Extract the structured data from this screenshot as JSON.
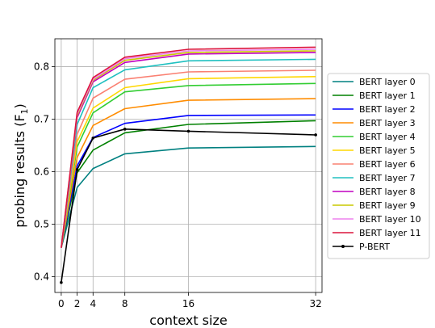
{
  "chart_data": {
    "type": "line",
    "xlabel": "context size",
    "ylabel": "probing results (F",
    "ylabel_sub": "1",
    "ylabel_close": ")",
    "x": [
      0,
      2,
      4,
      8,
      16,
      32
    ],
    "xticks": [
      "0",
      "2",
      "4",
      "8",
      "16",
      "32"
    ],
    "yticks": [
      "0.4",
      "0.5",
      "0.6",
      "0.7",
      "0.8"
    ],
    "xlim": [
      -0.8,
      32.8
    ],
    "ylim": [
      0.37,
      0.853
    ],
    "grid": true,
    "legend_position": "right",
    "series": [
      {
        "name": "BERT layer 0",
        "color": "#008080",
        "values": [
          0.455,
          0.57,
          0.606,
          0.634,
          0.645,
          0.648
        ]
      },
      {
        "name": "BERT layer 1",
        "color": "#008000",
        "values": [
          0.455,
          0.598,
          0.641,
          0.674,
          0.69,
          0.697
        ]
      },
      {
        "name": "BERT layer 2",
        "color": "#0000ff",
        "values": [
          0.455,
          0.611,
          0.665,
          0.692,
          0.707,
          0.708
        ]
      },
      {
        "name": "BERT layer 3",
        "color": "#ff8c00",
        "values": [
          0.455,
          0.627,
          0.688,
          0.72,
          0.736,
          0.739
        ]
      },
      {
        "name": "BERT layer 4",
        "color": "#32cd32",
        "values": [
          0.455,
          0.647,
          0.712,
          0.752,
          0.764,
          0.768
        ]
      },
      {
        "name": "BERT layer 5",
        "color": "#ffd700",
        "values": [
          0.455,
          0.657,
          0.721,
          0.76,
          0.777,
          0.781
        ]
      },
      {
        "name": "BERT layer 6",
        "color": "#fa8072",
        "values": [
          0.455,
          0.671,
          0.74,
          0.776,
          0.79,
          0.793
        ]
      },
      {
        "name": "BERT layer 7",
        "color": "#20c0c0",
        "values": [
          0.455,
          0.69,
          0.76,
          0.794,
          0.811,
          0.814
        ]
      },
      {
        "name": "BERT layer 8",
        "color": "#c000c0",
        "values": [
          0.455,
          0.703,
          0.771,
          0.808,
          0.824,
          0.827
        ]
      },
      {
        "name": "BERT layer 9",
        "color": "#c8c800",
        "values": [
          0.455,
          0.707,
          0.774,
          0.812,
          0.827,
          0.83
        ]
      },
      {
        "name": "BERT layer 10",
        "color": "#ee82ee",
        "values": [
          0.455,
          0.71,
          0.776,
          0.815,
          0.83,
          0.833
        ]
      },
      {
        "name": "BERT layer 11",
        "color": "#dc143c",
        "values": [
          0.455,
          0.713,
          0.779,
          0.818,
          0.833,
          0.837
        ]
      },
      {
        "name": "P-BERT",
        "color": "#000000",
        "marker": true,
        "values": [
          0.389,
          0.604,
          0.664,
          0.681,
          0.677,
          0.67
        ]
      }
    ]
  }
}
